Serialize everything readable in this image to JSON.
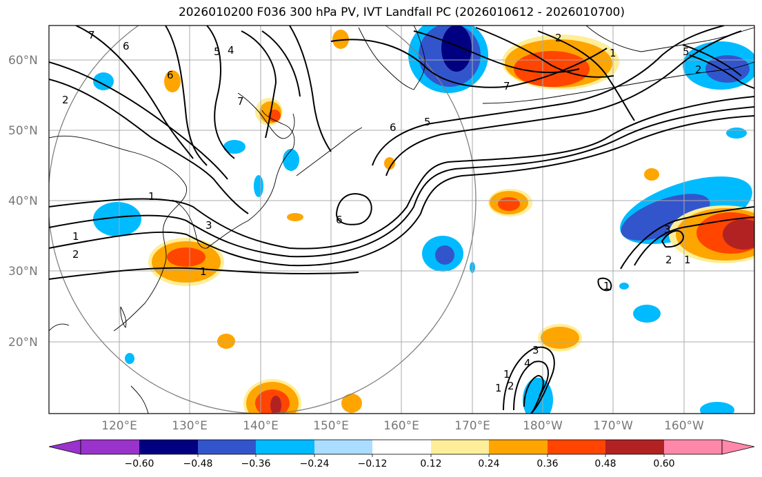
{
  "title": "2026010200 F036 300 hPa PV, IVT Landfall PC (2026010612 - 2026010700)",
  "map": {
    "lat_labels": [
      "60°N",
      "50°N",
      "40°N",
      "30°N",
      "20°N"
    ],
    "lon_labels": [
      "120°E",
      "130°E",
      "140°E",
      "150°E",
      "160°E",
      "170°E",
      "180°W",
      "170°W",
      "160°W"
    ],
    "contour_labels": [
      "7",
      "6",
      "5",
      "4",
      "6",
      "5",
      "2",
      "1",
      "7",
      "1",
      "2",
      "3",
      "1",
      "2",
      "1",
      "2",
      "1",
      "3",
      "2",
      "1",
      "1",
      "6",
      "3",
      "4",
      "5",
      "6",
      "7",
      "1",
      "2"
    ]
  },
  "colorbar": {
    "ticks": [
      "−0.60",
      "−0.48",
      "−0.36",
      "−0.24",
      "−0.12",
      "0.12",
      "0.24",
      "0.36",
      "0.48",
      "0.60"
    ],
    "colors": [
      "#9933cc",
      "#000080",
      "#3355cc",
      "#00bbff",
      "#aaddff",
      "#ffffff",
      "#ffee99",
      "#ffa500",
      "#ff4500",
      "#b22222",
      "#ff88aa"
    ]
  }
}
